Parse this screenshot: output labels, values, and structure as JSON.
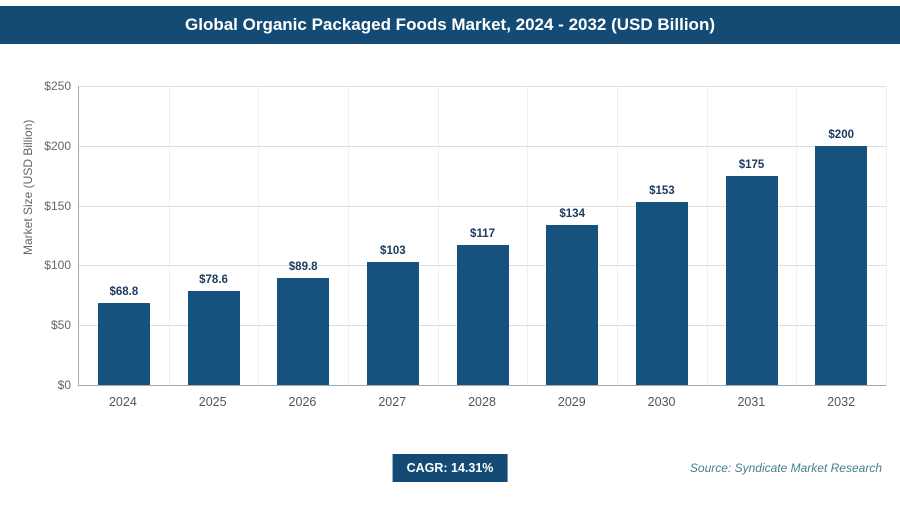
{
  "header": {
    "title": "Global Organic Packaged Foods Market, 2024 - 2032 (USD Billion)"
  },
  "chart_data": {
    "type": "bar",
    "title": "Global Organic Packaged Foods Market, 2024 - 2032 (USD Billion)",
    "categories": [
      "2024",
      "2025",
      "2026",
      "2027",
      "2028",
      "2029",
      "2030",
      "2031",
      "2032"
    ],
    "values": [
      68.8,
      78.6,
      89.8,
      103,
      117,
      134,
      153,
      175,
      200
    ],
    "value_labels": [
      "$68.8",
      "$78.6",
      "$89.8",
      "$103",
      "$117",
      "$134",
      "$153",
      "$175",
      "$200"
    ],
    "xlabel": "",
    "ylabel": "Market Size (USD Billion)",
    "ylim": [
      0,
      250
    ],
    "yticks": [
      0,
      50,
      100,
      150,
      200,
      250
    ],
    "ytick_labels": [
      "$0",
      "$50",
      "$100",
      "$150",
      "$200",
      "$250"
    ],
    "grid": true,
    "legend": false,
    "bar_color": "#15537e"
  },
  "footer": {
    "cagr_label": "CAGR: 14.31%",
    "source": "Source: Syndicate Market Research"
  },
  "colors": {
    "header_bg": "#134b74",
    "bar": "#15537e",
    "value_label": "#1d3a5f",
    "axis_text": "#666666",
    "gridline": "#dedede",
    "source_text": "#45808f"
  }
}
